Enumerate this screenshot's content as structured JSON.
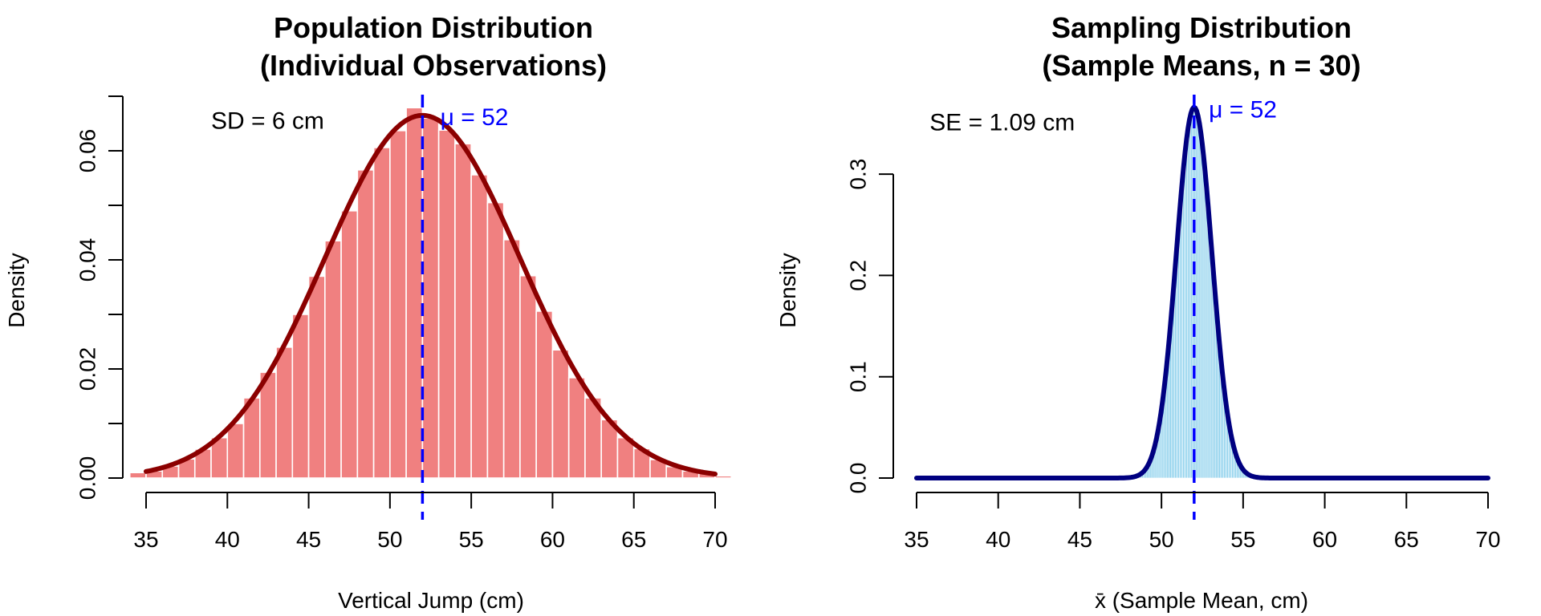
{
  "chart_data": [
    {
      "type": "bar",
      "subtype": "histogram_with_density_curve",
      "title": "Population Distribution",
      "subtitle": "(Individual Observations)",
      "xlabel": "Vertical Jump (cm)",
      "ylabel": "Density",
      "xlim": [
        35,
        70
      ],
      "ylim": [
        0,
        0.07
      ],
      "x_ticks": [
        35,
        40,
        45,
        50,
        55,
        60,
        65,
        70
      ],
      "x_tick_labels": [
        "35",
        "40",
        "45",
        "50",
        "55",
        "60",
        "65",
        "70"
      ],
      "y_ticks": [
        0,
        0.01,
        0.02,
        0.03,
        0.04,
        0.05,
        0.06,
        0.07
      ],
      "y_tick_labels": [
        "0.00",
        "",
        "0.02",
        "",
        "0.04",
        "",
        "0.06",
        ""
      ],
      "grid": false,
      "bin_width": 1,
      "bins": {
        "starts": [
          34,
          35,
          36,
          37,
          38,
          39,
          40,
          41,
          42,
          43,
          44,
          45,
          46,
          47,
          48,
          49,
          50,
          51,
          52,
          53,
          54,
          55,
          56,
          57,
          58,
          59,
          60,
          61,
          62,
          63,
          64,
          65,
          66,
          67,
          68,
          69,
          70,
          71
        ],
        "densities": [
          0.001,
          0.0013,
          0.0022,
          0.0035,
          0.0053,
          0.0074,
          0.01,
          0.0147,
          0.0194,
          0.024,
          0.03,
          0.037,
          0.0435,
          0.049,
          0.0565,
          0.0606,
          0.0637,
          0.0679,
          0.066,
          0.0638,
          0.0613,
          0.0556,
          0.0505,
          0.0437,
          0.0371,
          0.0306,
          0.0235,
          0.0184,
          0.0147,
          0.0107,
          0.0074,
          0.0054,
          0.0034,
          0.0021,
          0.0013,
          0.0009,
          0.0004,
          0.0001
        ]
      },
      "curve": {
        "distribution": "normal",
        "mean": 52,
        "sd": 6,
        "x_range": [
          35,
          70
        ]
      },
      "mean_line": {
        "x": 52,
        "style": "dashed"
      },
      "annotations": [
        {
          "id": "sd",
          "text": "SD = 6 cm",
          "x": 39,
          "y": 0.0655
        },
        {
          "id": "mu",
          "text": "μ = 52",
          "x": 53.1,
          "y": 0.0662
        }
      ],
      "colors": {
        "bars": "#F08080",
        "bar_border": "#FFFFFF",
        "curve": "#8B0000",
        "mean_line": "#0000FF",
        "mu_text": "#0000FF",
        "sd_text": "#000000"
      }
    },
    {
      "type": "bar",
      "subtype": "histogram_with_density_curve",
      "title": "Sampling Distribution",
      "subtitle": "(Sample Means, n = 30)",
      "xlabel": "x̄ (Sample Mean, cm)",
      "ylabel": "Density",
      "xlim": [
        35,
        70
      ],
      "ylim": [
        0,
        0.3
      ],
      "x_ticks": [
        35,
        40,
        45,
        50,
        55,
        60,
        65,
        70
      ],
      "x_tick_labels": [
        "35",
        "40",
        "45",
        "50",
        "55",
        "60",
        "65",
        "70"
      ],
      "y_ticks": [
        0,
        0.1,
        0.2,
        0.3
      ],
      "y_tick_labels": [
        "0.0",
        "0.1",
        "0.2",
        "0.3"
      ],
      "grid": false,
      "bin_width": 0.1,
      "bins": {
        "start": 48.0,
        "densities": [
          0.0005,
          0.0007,
          0.001,
          0.0013,
          0.0018,
          0.0024,
          0.0033,
          0.0043,
          0.0056,
          0.0073,
          0.0094,
          0.012,
          0.0152,
          0.0191,
          0.0237,
          0.0293,
          0.0358,
          0.0435,
          0.0523,
          0.0624,
          0.0739,
          0.0867,
          0.1009,
          0.1164,
          0.1332,
          0.1511,
          0.17,
          0.1896,
          0.2098,
          0.2301,
          0.2503,
          0.2701,
          0.2888,
          0.3064,
          0.3223,
          0.3361,
          0.3476,
          0.3565,
          0.3626,
          0.3656,
          0.3656,
          0.3626,
          0.3565,
          0.3476,
          0.3361,
          0.3223,
          0.3064,
          0.2888,
          0.2701,
          0.2503,
          0.2301,
          0.2098,
          0.1896,
          0.17,
          0.1511,
          0.1332,
          0.1164,
          0.1009,
          0.0867,
          0.0739,
          0.0624,
          0.0523,
          0.0435,
          0.0358,
          0.0293,
          0.0237,
          0.0191,
          0.0152,
          0.012,
          0.0094,
          0.0073,
          0.0056,
          0.0043,
          0.0033,
          0.0024,
          0.0018,
          0.0013,
          0.001,
          0.0007,
          0.0005
        ]
      },
      "curve": {
        "distribution": "normal",
        "mean": 52,
        "sd": 1.09,
        "x_range": [
          35,
          70
        ]
      },
      "mean_line": {
        "x": 52,
        "style": "dashed"
      },
      "annotations": [
        {
          "id": "se",
          "text": "SE = 1.09 cm",
          "x": 35.8,
          "y": 0.351
        },
        {
          "id": "mu",
          "text": "μ = 52",
          "x": 52.9,
          "y": 0.364
        }
      ],
      "colors": {
        "bars": "#87CEEB",
        "bar_border": "#FFFFFF",
        "curve": "#000080",
        "mean_line": "#0000FF",
        "mu_text": "#0000FF",
        "se_text": "#000000"
      }
    }
  ]
}
